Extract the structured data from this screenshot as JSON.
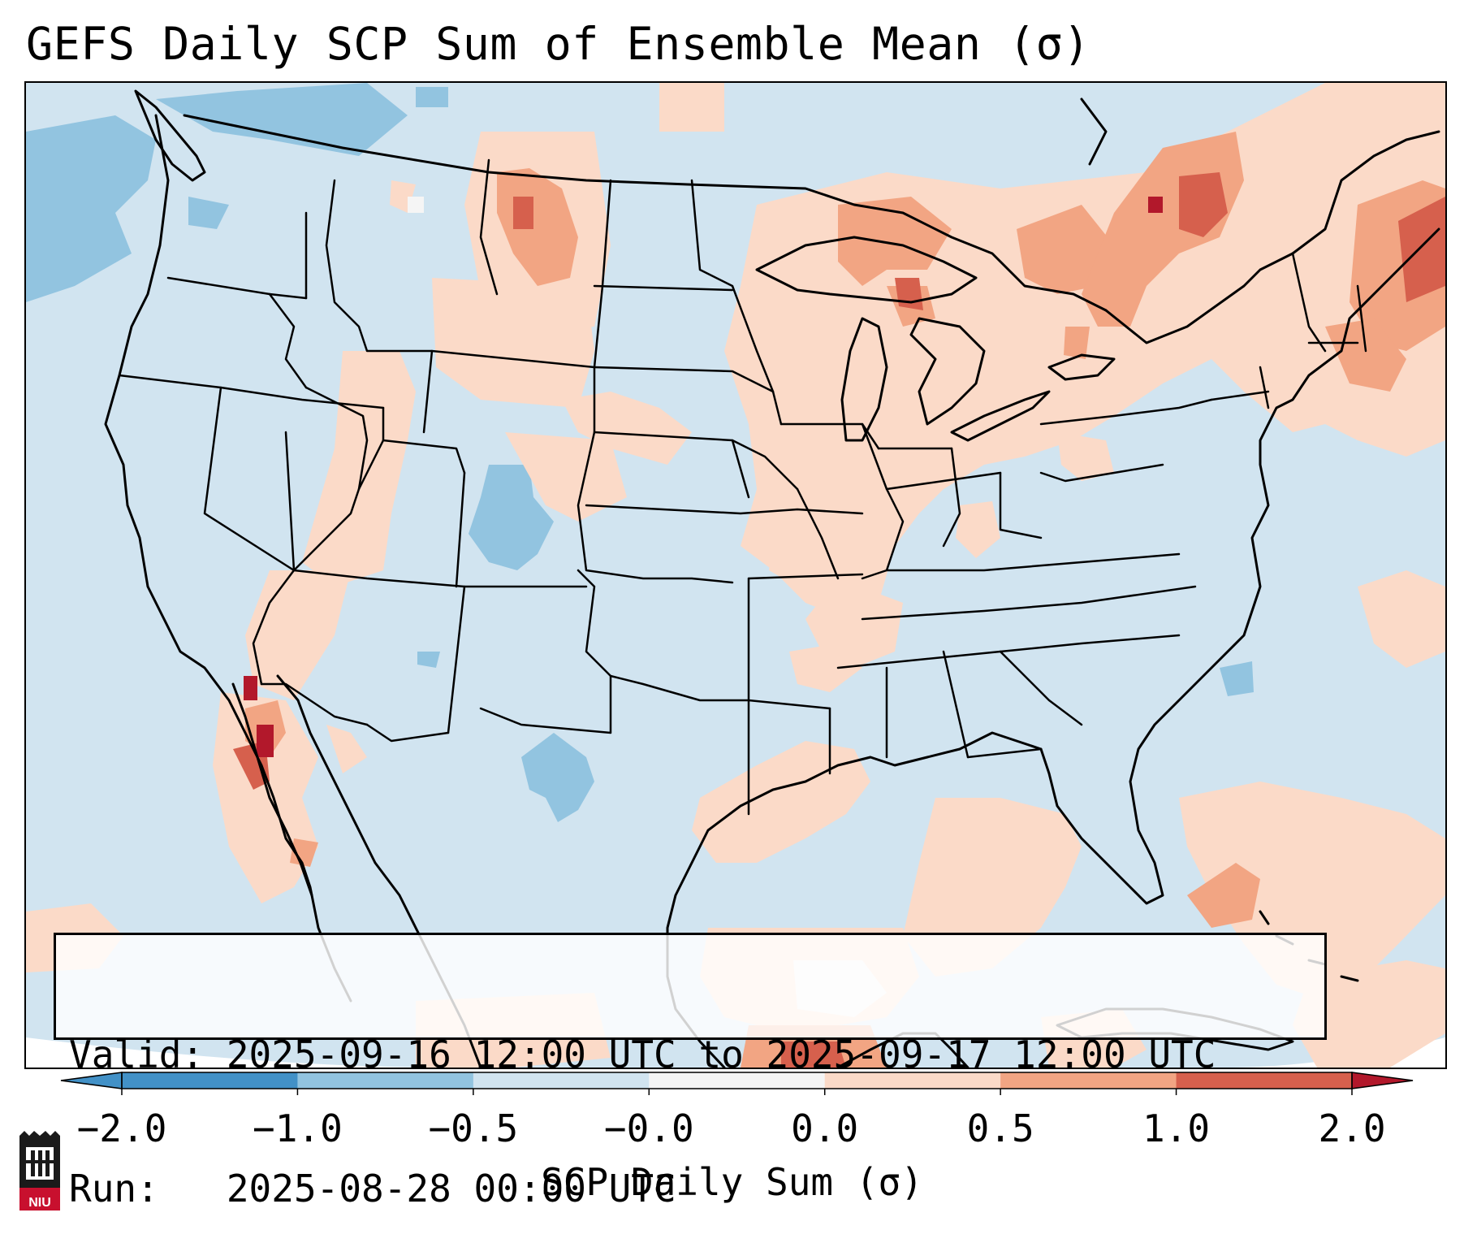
{
  "title": "GEFS Daily SCP Sum of Ensemble Mean (σ)",
  "info": {
    "valid": "Valid: 2025-09-16 12:00 UTC to 2025-09-17 12:00 UTC",
    "run": "Run:   2025-08-28 00:00 UTC"
  },
  "colorbar": {
    "label": "SCP Daily Sum (σ)",
    "ticks": [
      "−2.0",
      "−1.0",
      "−0.5",
      "−0.0",
      "0.0",
      "0.5",
      "1.0",
      "2.0"
    ],
    "colors": [
      "#4291c7",
      "#92c4e0",
      "#d1e4f0",
      "#f5f5f5",
      "#fbdac8",
      "#f2a583",
      "#d6604d",
      "#b2182b"
    ]
  },
  "logo_text": "NIU",
  "map_colors": {
    "background": "#d1e4f0",
    "light_blue": "#92c4e0",
    "blue": "#4291c7",
    "peach": "#fbdac8",
    "salmon": "#f2a583",
    "red": "#d6604d",
    "dark_red": "#b2182b",
    "near_zero": "#f5f5f5"
  }
}
